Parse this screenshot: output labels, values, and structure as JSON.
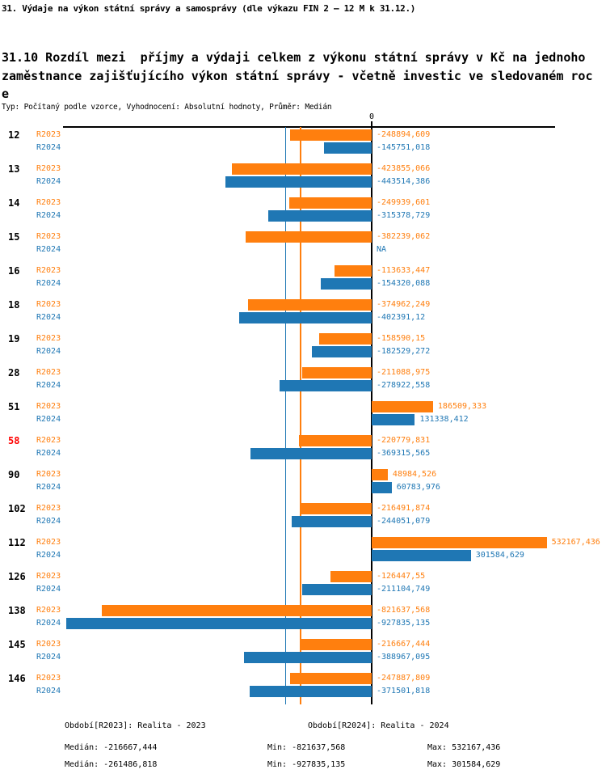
{
  "header": {
    "title": "31. Výdaje na výkon státní správy a samosprávy (dle výkazu FIN 2 – 12 M k 31.12.)",
    "subtitle": "31.10 Rozdíl mezi  příjmy a výdaji celkem z výkonu státní správy v Kč na jednoho\nzaměstnance zajišťujícího výkon státní správy - včetně investic ve sledovaném roc\ne",
    "meta": "Typ: Počítaný podle vzorce, Vyhodnocení: Absolutní hodnoty, Průměr: Medián"
  },
  "chart_data": {
    "type": "bar",
    "orientation": "horizontal",
    "zero_tick_label": "0",
    "na_label": "NA",
    "series_labels": {
      "r2023": "R2023",
      "r2024": "R2024"
    },
    "colors": {
      "r2023": "#ff7f0e",
      "r2024": "#1f77b4",
      "highlight": "#ff0000",
      "axis": "#000000"
    },
    "axis_range": [
      -940000,
      559000
    ],
    "legend_position": "bottom",
    "grid": false,
    "categories": [
      {
        "code": "12",
        "highlight": false,
        "r2023": -248894.609,
        "r2024": -145751.018,
        "r2023_label": "-248894,609",
        "r2024_label": "-145751,018"
      },
      {
        "code": "13",
        "highlight": false,
        "r2023": -423855.066,
        "r2024": -443514.386,
        "r2023_label": "-423855,066",
        "r2024_label": "-443514,386"
      },
      {
        "code": "14",
        "highlight": false,
        "r2023": -249939.601,
        "r2024": -315378.729,
        "r2023_label": "-249939,601",
        "r2024_label": "-315378,729"
      },
      {
        "code": "15",
        "highlight": false,
        "r2023": -382239.062,
        "r2024": null,
        "r2023_label": "-382239,062",
        "r2024_label": "NA"
      },
      {
        "code": "16",
        "highlight": false,
        "r2023": -113633.447,
        "r2024": -154320.088,
        "r2023_label": "-113633,447",
        "r2024_label": "-154320,088"
      },
      {
        "code": "18",
        "highlight": false,
        "r2023": -374962.249,
        "r2024": -402391.12,
        "r2023_label": "-374962,249",
        "r2024_label": "-402391,12"
      },
      {
        "code": "19",
        "highlight": false,
        "r2023": -158590.15,
        "r2024": -182529.272,
        "r2023_label": "-158590,15",
        "r2024_label": "-182529,272"
      },
      {
        "code": "28",
        "highlight": false,
        "r2023": -211088.975,
        "r2024": -278922.558,
        "r2023_label": "-211088,975",
        "r2024_label": "-278922,558"
      },
      {
        "code": "51",
        "highlight": false,
        "r2023": 186509.333,
        "r2024": 131338.412,
        "r2023_label": "186509,333",
        "r2024_label": "131338,412"
      },
      {
        "code": "58",
        "highlight": true,
        "r2023": -220779.831,
        "r2024": -369315.565,
        "r2023_label": "-220779,831",
        "r2024_label": "-369315,565"
      },
      {
        "code": "90",
        "highlight": false,
        "r2023": 48984.526,
        "r2024": 60783.976,
        "r2023_label": "48984,526",
        "r2024_label": "60783,976"
      },
      {
        "code": "102",
        "highlight": false,
        "r2023": -216491.874,
        "r2024": -244051.079,
        "r2023_label": "-216491,874",
        "r2024_label": "-244051,079"
      },
      {
        "code": "112",
        "highlight": false,
        "r2023": 532167.436,
        "r2024": 301584.629,
        "r2023_label": "532167,436",
        "r2024_label": "301584,629"
      },
      {
        "code": "126",
        "highlight": false,
        "r2023": -126447.55,
        "r2024": -211104.749,
        "r2023_label": "-126447,55",
        "r2024_label": "-211104,749"
      },
      {
        "code": "138",
        "highlight": false,
        "r2023": -821637.568,
        "r2024": -927835.135,
        "r2023_label": "-821637,568",
        "r2024_label": "-927835,135"
      },
      {
        "code": "145",
        "highlight": false,
        "r2023": -216667.444,
        "r2024": -388967.095,
        "r2023_label": "-216667,444",
        "r2024_label": "-388967,095"
      },
      {
        "code": "146",
        "highlight": false,
        "r2023": -247887.809,
        "r2024": -371501.818,
        "r2023_label": "-247887,809",
        "r2024_label": "-371501,818"
      }
    ],
    "reference_lines": [
      {
        "series": "r2023",
        "value": -216667.444
      },
      {
        "series": "r2024",
        "value": -261486.818
      }
    ]
  },
  "footer": {
    "r2023": {
      "period": "Období[R2023]: Realita - 2023",
      "median": "Medián: -216667,444",
      "min": "Min: -821637,568",
      "max": "Max: 532167,436"
    },
    "r2024": {
      "period": "Období[R2024]: Realita - 2024",
      "median": "Medián: -261486,818",
      "min": "Min: -927835,135",
      "max": "Max: 301584,629"
    }
  }
}
